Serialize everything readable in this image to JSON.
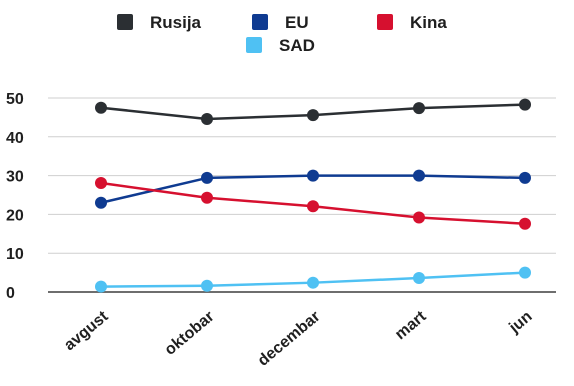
{
  "chart_data": {
    "type": "line",
    "categories": [
      "avgust",
      "oktobar",
      "decembar",
      "mart",
      "jun"
    ],
    "ylim": [
      0,
      50
    ],
    "yticks": [
      0,
      10,
      20,
      30,
      40,
      50
    ],
    "grid": true,
    "legend_position": "top",
    "series": [
      {
        "name": "Rusija",
        "color": "#2b2f33",
        "values": [
          47.5,
          44.6,
          45.6,
          47.4,
          48.3
        ]
      },
      {
        "name": "EU",
        "color": "#0f3b91",
        "values": [
          23.0,
          29.4,
          30.0,
          30.0,
          29.4
        ]
      },
      {
        "name": "Kina",
        "color": "#d6102f",
        "values": [
          28.1,
          24.3,
          22.1,
          19.2,
          17.6
        ]
      },
      {
        "name": "SAD",
        "color": "#4fc1f3",
        "values": [
          1.4,
          1.6,
          2.4,
          3.6,
          5.0
        ]
      }
    ]
  }
}
